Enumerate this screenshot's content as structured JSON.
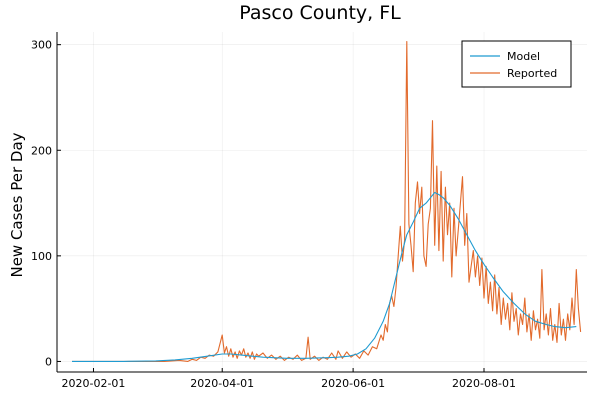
{
  "chart_data": {
    "type": "line",
    "title": "Pasco County, FL",
    "xlabel": "",
    "ylabel": "New Cases Per Day",
    "x_axis": {
      "kind": "date",
      "range": [
        "2020-01-15",
        "2020-09-18"
      ],
      "ticks": [
        "2020-02-01",
        "2020-04-01",
        "2020-06-01",
        "2020-08-01"
      ]
    },
    "y_axis": {
      "range": [
        -10,
        312
      ],
      "ticks": [
        0,
        100,
        200,
        300
      ]
    },
    "grid": true,
    "legend": {
      "position": "top-right",
      "entries": [
        "Model",
        "Reported"
      ]
    },
    "series": [
      {
        "name": "Model",
        "color": "#1f9bd1",
        "points": [
          [
            "2020-01-22",
            0
          ],
          [
            "2020-02-15",
            0
          ],
          [
            "2020-03-01",
            0.5
          ],
          [
            "2020-03-10",
            1.5
          ],
          [
            "2020-03-18",
            3
          ],
          [
            "2020-03-25",
            5
          ],
          [
            "2020-04-01",
            7
          ],
          [
            "2020-04-05",
            7
          ],
          [
            "2020-04-10",
            6
          ],
          [
            "2020-04-15",
            5
          ],
          [
            "2020-04-20",
            4
          ],
          [
            "2020-04-25",
            3.5
          ],
          [
            "2020-05-01",
            3
          ],
          [
            "2020-05-10",
            3
          ],
          [
            "2020-05-20",
            3.5
          ],
          [
            "2020-05-25",
            4
          ],
          [
            "2020-05-30",
            5
          ],
          [
            "2020-06-03",
            7
          ],
          [
            "2020-06-07",
            12
          ],
          [
            "2020-06-11",
            22
          ],
          [
            "2020-06-15",
            38
          ],
          [
            "2020-06-18",
            55
          ],
          [
            "2020-06-21",
            80
          ],
          [
            "2020-06-24",
            105
          ],
          [
            "2020-06-26",
            120
          ],
          [
            "2020-06-29",
            132
          ],
          [
            "2020-07-02",
            145
          ],
          [
            "2020-07-05",
            150
          ],
          [
            "2020-07-07",
            155
          ],
          [
            "2020-07-09",
            160
          ],
          [
            "2020-07-11",
            158
          ],
          [
            "2020-07-13",
            155
          ],
          [
            "2020-07-16",
            148
          ],
          [
            "2020-07-20",
            135
          ],
          [
            "2020-07-24",
            120
          ],
          [
            "2020-07-28",
            105
          ],
          [
            "2020-08-01",
            92
          ],
          [
            "2020-08-05",
            80
          ],
          [
            "2020-08-10",
            66
          ],
          [
            "2020-08-15",
            55
          ],
          [
            "2020-08-20",
            45
          ],
          [
            "2020-08-25",
            38
          ],
          [
            "2020-08-30",
            35
          ],
          [
            "2020-09-03",
            33
          ],
          [
            "2020-09-08",
            32
          ],
          [
            "2020-09-13",
            33
          ]
        ]
      },
      {
        "name": "Reported",
        "color": "#e26a2c",
        "points": [
          [
            "2020-01-22",
            0
          ],
          [
            "2020-02-15",
            0
          ],
          [
            "2020-03-05",
            0
          ],
          [
            "2020-03-12",
            1
          ],
          [
            "2020-03-16",
            0
          ],
          [
            "2020-03-18",
            2
          ],
          [
            "2020-03-20",
            1
          ],
          [
            "2020-03-22",
            4
          ],
          [
            "2020-03-24",
            3
          ],
          [
            "2020-03-26",
            6
          ],
          [
            "2020-03-28",
            5
          ],
          [
            "2020-03-30",
            9
          ],
          [
            "2020-04-01",
            25
          ],
          [
            "2020-04-02",
            8
          ],
          [
            "2020-04-03",
            14
          ],
          [
            "2020-04-04",
            5
          ],
          [
            "2020-04-05",
            12
          ],
          [
            "2020-04-06",
            4
          ],
          [
            "2020-04-07",
            9
          ],
          [
            "2020-04-08",
            3
          ],
          [
            "2020-04-09",
            10
          ],
          [
            "2020-04-10",
            6
          ],
          [
            "2020-04-11",
            12
          ],
          [
            "2020-04-12",
            4
          ],
          [
            "2020-04-13",
            8
          ],
          [
            "2020-04-14",
            3
          ],
          [
            "2020-04-15",
            9
          ],
          [
            "2020-04-16",
            2
          ],
          [
            "2020-04-17",
            7
          ],
          [
            "2020-04-18",
            5
          ],
          [
            "2020-04-20",
            8
          ],
          [
            "2020-04-22",
            3
          ],
          [
            "2020-04-24",
            6
          ],
          [
            "2020-04-26",
            2
          ],
          [
            "2020-04-28",
            5
          ],
          [
            "2020-04-30",
            1
          ],
          [
            "2020-05-02",
            4
          ],
          [
            "2020-05-04",
            2
          ],
          [
            "2020-05-06",
            6
          ],
          [
            "2020-05-08",
            1
          ],
          [
            "2020-05-10",
            3
          ],
          [
            "2020-05-11",
            23
          ],
          [
            "2020-05-12",
            2
          ],
          [
            "2020-05-14",
            5
          ],
          [
            "2020-05-16",
            1
          ],
          [
            "2020-05-18",
            4
          ],
          [
            "2020-05-20",
            2
          ],
          [
            "2020-05-22",
            8
          ],
          [
            "2020-05-24",
            2
          ],
          [
            "2020-05-25",
            10
          ],
          [
            "2020-05-27",
            3
          ],
          [
            "2020-05-29",
            9
          ],
          [
            "2020-05-31",
            4
          ],
          [
            "2020-06-02",
            7
          ],
          [
            "2020-06-04",
            3
          ],
          [
            "2020-06-06",
            10
          ],
          [
            "2020-06-08",
            6
          ],
          [
            "2020-06-10",
            14
          ],
          [
            "2020-06-12",
            12
          ],
          [
            "2020-06-14",
            25
          ],
          [
            "2020-06-15",
            20
          ],
          [
            "2020-06-16",
            35
          ],
          [
            "2020-06-17",
            28
          ],
          [
            "2020-06-18",
            55
          ],
          [
            "2020-06-19",
            62
          ],
          [
            "2020-06-20",
            52
          ],
          [
            "2020-06-21",
            70
          ],
          [
            "2020-06-22",
            100
          ],
          [
            "2020-06-23",
            128
          ],
          [
            "2020-06-24",
            95
          ],
          [
            "2020-06-25",
            115
          ],
          [
            "2020-06-26",
            303
          ],
          [
            "2020-06-27",
            130
          ],
          [
            "2020-06-28",
            110
          ],
          [
            "2020-06-29",
            85
          ],
          [
            "2020-06-30",
            150
          ],
          [
            "2020-07-01",
            170
          ],
          [
            "2020-07-02",
            140
          ],
          [
            "2020-07-03",
            165
          ],
          [
            "2020-07-04",
            100
          ],
          [
            "2020-07-05",
            90
          ],
          [
            "2020-07-06",
            130
          ],
          [
            "2020-07-07",
            145
          ],
          [
            "2020-07-08",
            228
          ],
          [
            "2020-07-09",
            110
          ],
          [
            "2020-07-10",
            185
          ],
          [
            "2020-07-11",
            105
          ],
          [
            "2020-07-12",
            180
          ],
          [
            "2020-07-13",
            95
          ],
          [
            "2020-07-14",
            165
          ],
          [
            "2020-07-15",
            120
          ],
          [
            "2020-07-16",
            150
          ],
          [
            "2020-07-17",
            80
          ],
          [
            "2020-07-18",
            145
          ],
          [
            "2020-07-19",
            100
          ],
          [
            "2020-07-20",
            125
          ],
          [
            "2020-07-21",
            150
          ],
          [
            "2020-07-22",
            175
          ],
          [
            "2020-07-23",
            110
          ],
          [
            "2020-07-24",
            140
          ],
          [
            "2020-07-25",
            75
          ],
          [
            "2020-07-26",
            90
          ],
          [
            "2020-07-27",
            105
          ],
          [
            "2020-07-28",
            80
          ],
          [
            "2020-07-29",
            100
          ],
          [
            "2020-07-30",
            72
          ],
          [
            "2020-07-31",
            98
          ],
          [
            "2020-08-01",
            60
          ],
          [
            "2020-08-02",
            90
          ],
          [
            "2020-08-03",
            55
          ],
          [
            "2020-08-04",
            75
          ],
          [
            "2020-08-05",
            48
          ],
          [
            "2020-08-06",
            82
          ],
          [
            "2020-08-07",
            45
          ],
          [
            "2020-08-08",
            70
          ],
          [
            "2020-08-09",
            35
          ],
          [
            "2020-08-10",
            60
          ],
          [
            "2020-08-11",
            40
          ],
          [
            "2020-08-12",
            55
          ],
          [
            "2020-08-13",
            30
          ],
          [
            "2020-08-14",
            65
          ],
          [
            "2020-08-15",
            38
          ],
          [
            "2020-08-16",
            50
          ],
          [
            "2020-08-17",
            25
          ],
          [
            "2020-08-18",
            45
          ],
          [
            "2020-08-19",
            35
          ],
          [
            "2020-08-20",
            60
          ],
          [
            "2020-08-21",
            28
          ],
          [
            "2020-08-22",
            45
          ],
          [
            "2020-08-23",
            20
          ],
          [
            "2020-08-24",
            48
          ],
          [
            "2020-08-25",
            30
          ],
          [
            "2020-08-26",
            40
          ],
          [
            "2020-08-27",
            22
          ],
          [
            "2020-08-28",
            87
          ],
          [
            "2020-08-29",
            30
          ],
          [
            "2020-08-30",
            45
          ],
          [
            "2020-08-31",
            25
          ],
          [
            "2020-09-01",
            50
          ],
          [
            "2020-09-02",
            20
          ],
          [
            "2020-09-03",
            35
          ],
          [
            "2020-09-04",
            18
          ],
          [
            "2020-09-05",
            55
          ],
          [
            "2020-09-06",
            25
          ],
          [
            "2020-09-07",
            40
          ],
          [
            "2020-09-08",
            20
          ],
          [
            "2020-09-09",
            45
          ],
          [
            "2020-09-10",
            30
          ],
          [
            "2020-09-11",
            60
          ],
          [
            "2020-09-12",
            35
          ],
          [
            "2020-09-13",
            87
          ],
          [
            "2020-09-14",
            50
          ],
          [
            "2020-09-15",
            28
          ]
        ]
      }
    ]
  }
}
